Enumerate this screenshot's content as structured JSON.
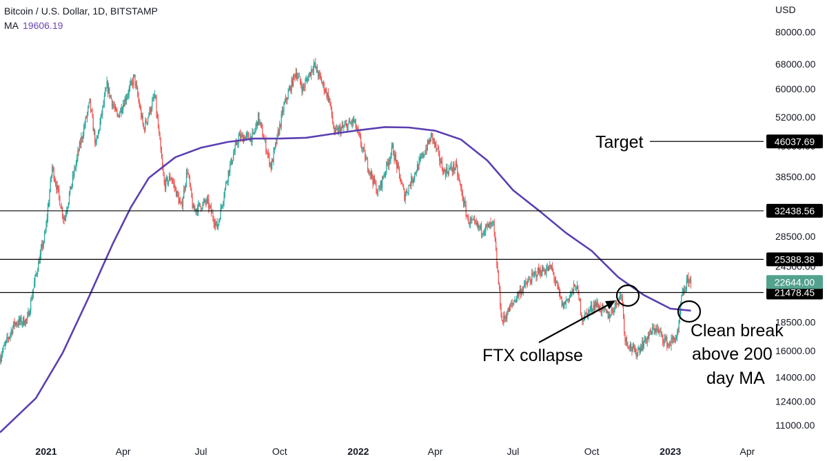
{
  "header": {
    "symbol": "Bitcoin / U.S. Dollar, 1D, BITSTAMP",
    "ma_label": "MA",
    "ma_value": "19606.19"
  },
  "chart_data": {
    "type": "candlestick",
    "log_scale": true,
    "currency": "USD",
    "ylim": [
      10400,
      94000
    ],
    "xlim": [
      "2020-11-08",
      "2023-04-20"
    ],
    "y_ticks": [
      "80000.00",
      "68000.00",
      "60000.00",
      "52000.00",
      "45000.00",
      "38500.00",
      "28500.00",
      "24500.00",
      "18500.00",
      "16000.00",
      "14000.00",
      "12400.00",
      "11000.00"
    ],
    "x_ticks": [
      {
        "label": "2021",
        "date": "2021-01-01",
        "bold": true
      },
      {
        "label": "Apr",
        "date": "2021-04-01",
        "bold": false
      },
      {
        "label": "Jul",
        "date": "2021-07-01",
        "bold": false
      },
      {
        "label": "Oct",
        "date": "2021-10-01",
        "bold": false
      },
      {
        "label": "2022",
        "date": "2022-01-01",
        "bold": true
      },
      {
        "label": "Apr",
        "date": "2022-04-01",
        "bold": false
      },
      {
        "label": "Jul",
        "date": "2022-07-01",
        "bold": false
      },
      {
        "label": "Oct",
        "date": "2022-10-01",
        "bold": false
      },
      {
        "label": "2023",
        "date": "2023-01-01",
        "bold": true
      },
      {
        "label": "Apr",
        "date": "2023-04-01",
        "bold": false
      }
    ],
    "price_series": {
      "points": [
        [
          "2020-11-08",
          15500
        ],
        [
          "2020-11-25",
          18400
        ],
        [
          "2020-12-10",
          18700
        ],
        [
          "2020-12-20",
          23500
        ],
        [
          "2020-12-31",
          29000
        ],
        [
          "2021-01-08",
          40500
        ],
        [
          "2021-01-22",
          31000
        ],
        [
          "2021-02-08",
          44000
        ],
        [
          "2021-02-21",
          56000
        ],
        [
          "2021-02-28",
          45000
        ],
        [
          "2021-03-13",
          61000
        ],
        [
          "2021-03-25",
          52000
        ],
        [
          "2021-04-14",
          63500
        ],
        [
          "2021-04-25",
          49000
        ],
        [
          "2021-05-08",
          58000
        ],
        [
          "2021-05-19",
          37000
        ],
        [
          "2021-05-27",
          38500
        ],
        [
          "2021-06-08",
          33000
        ],
        [
          "2021-06-15",
          40000
        ],
        [
          "2021-06-22",
          32500
        ],
        [
          "2021-07-08",
          34000
        ],
        [
          "2021-07-20",
          29800
        ],
        [
          "2021-08-02",
          39500
        ],
        [
          "2021-08-14",
          47000
        ],
        [
          "2021-08-31",
          47100
        ],
        [
          "2021-09-06",
          52000
        ],
        [
          "2021-09-21",
          40500
        ],
        [
          "2021-10-06",
          55000
        ],
        [
          "2021-10-20",
          65500
        ],
        [
          "2021-10-28",
          60000
        ],
        [
          "2021-11-10",
          68000
        ],
        [
          "2021-11-28",
          57000
        ],
        [
          "2021-12-04",
          48000
        ],
        [
          "2021-12-27",
          51000
        ],
        [
          "2022-01-10",
          41800
        ],
        [
          "2022-01-24",
          35500
        ],
        [
          "2022-02-10",
          44500
        ],
        [
          "2022-02-24",
          35000
        ],
        [
          "2022-03-28",
          47400
        ],
        [
          "2022-04-11",
          39500
        ],
        [
          "2022-04-25",
          40500
        ],
        [
          "2022-05-09",
          31000
        ],
        [
          "2022-05-25",
          29500
        ],
        [
          "2022-06-08",
          30200
        ],
        [
          "2022-06-18",
          18500
        ],
        [
          "2022-07-08",
          21500
        ],
        [
          "2022-07-29",
          23800
        ],
        [
          "2022-08-15",
          24300
        ],
        [
          "2022-08-28",
          20000
        ],
        [
          "2022-09-13",
          22300
        ],
        [
          "2022-09-20",
          18800
        ],
        [
          "2022-10-05",
          20300
        ],
        [
          "2022-10-21",
          19100
        ],
        [
          "2022-11-05",
          21300
        ],
        [
          "2022-11-09",
          17000
        ],
        [
          "2022-11-21",
          15800
        ],
        [
          "2022-12-05",
          17100
        ],
        [
          "2022-12-14",
          18000
        ],
        [
          "2022-12-30",
          16500
        ],
        [
          "2023-01-10",
          17400
        ],
        [
          "2023-01-14",
          20900
        ],
        [
          "2023-01-22",
          23000
        ],
        [
          "2023-01-25",
          22644
        ]
      ]
    },
    "ma_series": {
      "name": "MA",
      "points": [
        [
          "2020-11-08",
          10600
        ],
        [
          "2020-12-20",
          12600
        ],
        [
          "2021-01-20",
          15800
        ],
        [
          "2021-02-20",
          21000
        ],
        [
          "2021-03-20",
          27500
        ],
        [
          "2021-04-10",
          33000
        ],
        [
          "2021-05-01",
          38300
        ],
        [
          "2021-06-01",
          42500
        ],
        [
          "2021-07-01",
          44600
        ],
        [
          "2021-08-01",
          45900
        ],
        [
          "2021-09-01",
          46700
        ],
        [
          "2021-10-01",
          46700
        ],
        [
          "2021-11-01",
          46900
        ],
        [
          "2021-12-01",
          47800
        ],
        [
          "2022-01-01",
          48700
        ],
        [
          "2022-02-01",
          49500
        ],
        [
          "2022-03-01",
          49400
        ],
        [
          "2022-04-01",
          48600
        ],
        [
          "2022-05-01",
          46500
        ],
        [
          "2022-06-01",
          41800
        ],
        [
          "2022-07-01",
          36000
        ],
        [
          "2022-08-01",
          32400
        ],
        [
          "2022-09-01",
          29000
        ],
        [
          "2022-10-01",
          26500
        ],
        [
          "2022-11-01",
          23200
        ],
        [
          "2022-12-01",
          21200
        ],
        [
          "2023-01-01",
          19800
        ],
        [
          "2023-01-25",
          19600
        ]
      ]
    },
    "horizontal_levels": [
      {
        "value": 46037.69,
        "label": "46037.69",
        "line_from": "2022-12-08"
      },
      {
        "value": 32438.56,
        "label": "32438.56",
        "line_from": "2020-11-08"
      },
      {
        "value": 25388.38,
        "label": "25388.38",
        "line_from": "2020-11-08"
      },
      {
        "value": 21478.45,
        "label": "21478.45",
        "line_from": "2020-11-08"
      }
    ],
    "last_price": {
      "value": 22644,
      "label": "22644.00",
      "color": "#53a28e"
    },
    "annotations": [
      {
        "text": "Target",
        "anchor": "target"
      },
      {
        "text": "FTX collapse",
        "anchor": "ftx"
      },
      {
        "lines": [
          "Clean break",
          "above 200",
          "day MA"
        ],
        "anchor": "break"
      }
    ],
    "colors": {
      "up": "#26a69a",
      "down": "#ef5350",
      "ma": "#5b3fb0",
      "level_tag": "#000000"
    }
  }
}
